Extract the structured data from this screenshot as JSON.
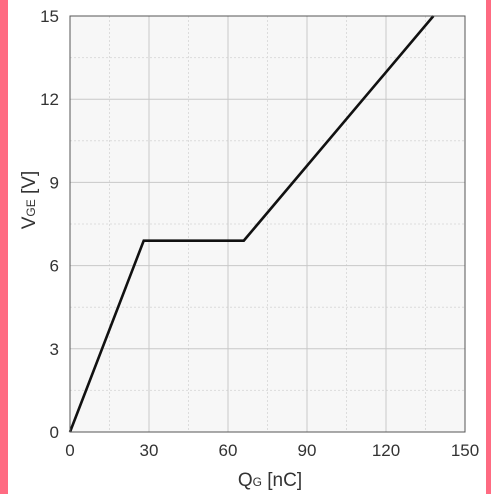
{
  "colors": {
    "frame": "#ff6b82",
    "plot_background": "#f7f7f7",
    "grid": "#c8c8c8",
    "minor_grid": "#dcdcdc",
    "line": "#111111",
    "text": "#333333"
  },
  "chart_data": {
    "type": "line",
    "title": "",
    "xlabel": "QG [nC]",
    "ylabel": "VGE [V]",
    "xlabel_main": "Q",
    "xlabel_sub": "G",
    "xlabel_unit": " [nC]",
    "ylabel_main": "V",
    "ylabel_sub": "GE",
    "ylabel_unit": " [V]",
    "xlim": [
      0,
      150
    ],
    "ylim": [
      0,
      15
    ],
    "xticks": [
      0,
      30,
      60,
      90,
      120,
      150
    ],
    "yticks": [
      0,
      3,
      6,
      9,
      12,
      15
    ],
    "grid": true,
    "minor_grid": true,
    "legend": "none",
    "series": [
      {
        "x": [
          0,
          28,
          66,
          138
        ],
        "y": [
          0,
          6.9,
          6.9,
          15
        ]
      }
    ]
  }
}
